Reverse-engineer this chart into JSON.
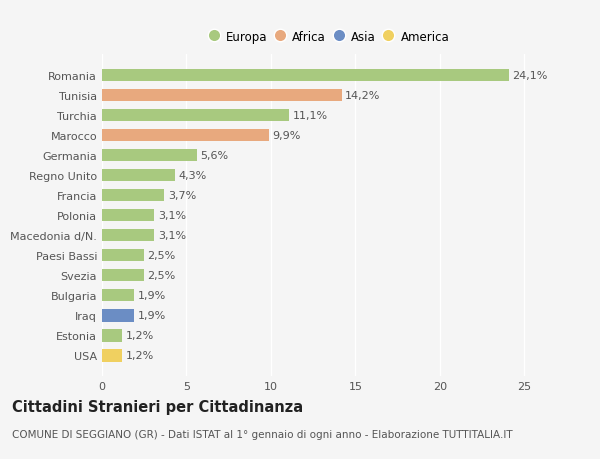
{
  "countries": [
    "Romania",
    "Tunisia",
    "Turchia",
    "Marocco",
    "Germania",
    "Regno Unito",
    "Francia",
    "Polonia",
    "Macedonia d/N.",
    "Paesi Bassi",
    "Svezia",
    "Bulgaria",
    "Iraq",
    "Estonia",
    "USA"
  ],
  "values": [
    24.1,
    14.2,
    11.1,
    9.9,
    5.6,
    4.3,
    3.7,
    3.1,
    3.1,
    2.5,
    2.5,
    1.9,
    1.9,
    1.2,
    1.2
  ],
  "labels": [
    "24,1%",
    "14,2%",
    "11,1%",
    "9,9%",
    "5,6%",
    "4,3%",
    "3,7%",
    "3,1%",
    "3,1%",
    "2,5%",
    "2,5%",
    "1,9%",
    "1,9%",
    "1,2%",
    "1,2%"
  ],
  "continents": [
    "Europa",
    "Africa",
    "Europa",
    "Africa",
    "Europa",
    "Europa",
    "Europa",
    "Europa",
    "Europa",
    "Europa",
    "Europa",
    "Europa",
    "Asia",
    "Europa",
    "America"
  ],
  "continent_colors": {
    "Europa": "#a8c97f",
    "Africa": "#e8a97e",
    "Asia": "#6b8dc4",
    "America": "#f0d060"
  },
  "legend_order": [
    "Europa",
    "Africa",
    "Asia",
    "America"
  ],
  "title": "Cittadini Stranieri per Cittadinanza",
  "subtitle": "COMUNE DI SEGGIANO (GR) - Dati ISTAT al 1° gennaio di ogni anno - Elaborazione TUTTITALIA.IT",
  "xlim": [
    0,
    27
  ],
  "xticks": [
    0,
    5,
    10,
    15,
    20,
    25
  ],
  "background_color": "#f5f5f5",
  "plot_bg_color": "#f5f5f5",
  "grid_color": "#ffffff",
  "bar_height": 0.62,
  "label_fontsize": 8,
  "title_fontsize": 10.5,
  "subtitle_fontsize": 7.5,
  "tick_fontsize": 8,
  "legend_fontsize": 8.5
}
